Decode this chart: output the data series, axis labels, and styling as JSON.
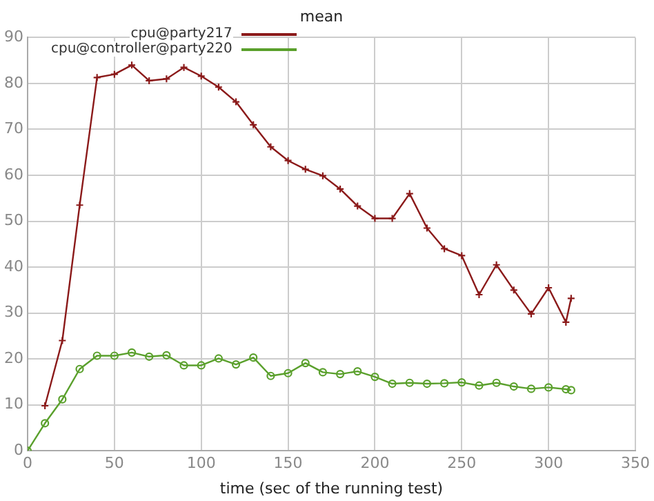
{
  "chart_data": {
    "type": "line",
    "title": "mean",
    "xlabel": "time (sec of the running test)",
    "xlim": [
      0,
      350
    ],
    "xticks": [
      0,
      50,
      100,
      150,
      200,
      250,
      300,
      350
    ],
    "ylim": [
      0,
      90
    ],
    "yticks": [
      0,
      10,
      20,
      30,
      40,
      50,
      60,
      70,
      80,
      90
    ],
    "grid": true,
    "legend": "top left",
    "line_style": "solid",
    "series": [
      {
        "name": "cpu@party217",
        "color": "#8b1a1a",
        "marker": "cross",
        "x": [
          10,
          20,
          30,
          40,
          50,
          60,
          70,
          80,
          90,
          100,
          110,
          120,
          130,
          140,
          150,
          160,
          170,
          180,
          190,
          200,
          210,
          220,
          230,
          240,
          250,
          260,
          270,
          280,
          290,
          300,
          310,
          313
        ],
        "values": [
          9.8,
          24,
          53.5,
          81.3,
          82,
          84,
          80.6,
          81,
          83.5,
          81.6,
          79.2,
          76,
          71,
          66.2,
          63.2,
          61.3,
          59.9,
          57,
          53.3,
          50.6,
          50.6,
          56,
          48.5,
          44,
          42.5,
          34,
          40.5,
          35,
          29.8,
          35.5,
          28,
          33.2
        ]
      },
      {
        "name": "cpu@controller@party220",
        "color": "#5aa02c",
        "marker": "circle",
        "x": [
          0,
          10,
          20,
          30,
          40,
          50,
          60,
          70,
          80,
          90,
          100,
          110,
          120,
          130,
          140,
          150,
          160,
          170,
          180,
          190,
          200,
          210,
          220,
          230,
          240,
          250,
          260,
          270,
          280,
          290,
          300,
          310,
          313
        ],
        "values": [
          0,
          6,
          11.2,
          17.8,
          20.7,
          20.7,
          21.4,
          20.5,
          20.8,
          18.6,
          18.6,
          20.1,
          18.8,
          20.3,
          16.3,
          16.9,
          19.1,
          17.1,
          16.7,
          17.3,
          16.1,
          14.6,
          14.8,
          14.6,
          14.7,
          14.9,
          14.2,
          14.8,
          14,
          13.5,
          13.8,
          13.4,
          13.2
        ]
      }
    ]
  }
}
